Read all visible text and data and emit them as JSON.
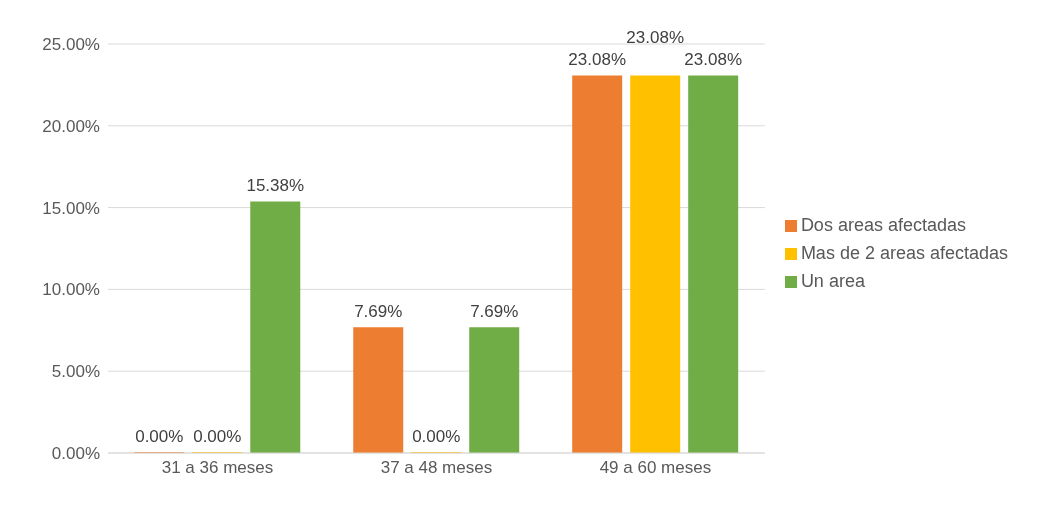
{
  "chart_data": {
    "type": "bar",
    "categories": [
      "31 a 36 meses",
      "37 a 48 meses",
      "49 a 60 meses"
    ],
    "series": [
      {
        "name": "Dos areas afectadas",
        "color": "#ed7d31",
        "values": [
          0,
          7.69,
          23.08
        ],
        "value_labels": [
          "0.00%",
          "7.69%",
          "23.08%"
        ]
      },
      {
        "name": "Mas de 2 areas afectadas",
        "color": "#ffc000",
        "values": [
          0,
          0,
          23.08
        ],
        "value_labels": [
          "0.00%",
          "0.00%",
          "23.08%"
        ]
      },
      {
        "name": "Un area",
        "color": "#70ad47",
        "values": [
          15.38,
          7.69,
          23.08
        ],
        "value_labels": [
          "15.38%",
          "7.69%",
          "23.08%"
        ]
      }
    ],
    "ylim": [
      0,
      25
    ],
    "yticks": [
      {
        "value": 0,
        "label": "0.00%"
      },
      {
        "value": 5,
        "label": "5.00%"
      },
      {
        "value": 10,
        "label": "10.00%"
      },
      {
        "value": 15,
        "label": "15.00%"
      },
      {
        "value": 20,
        "label": "20.00%"
      },
      {
        "value": 25,
        "label": "25.00%"
      }
    ],
    "grid": "y",
    "legend": "right"
  }
}
